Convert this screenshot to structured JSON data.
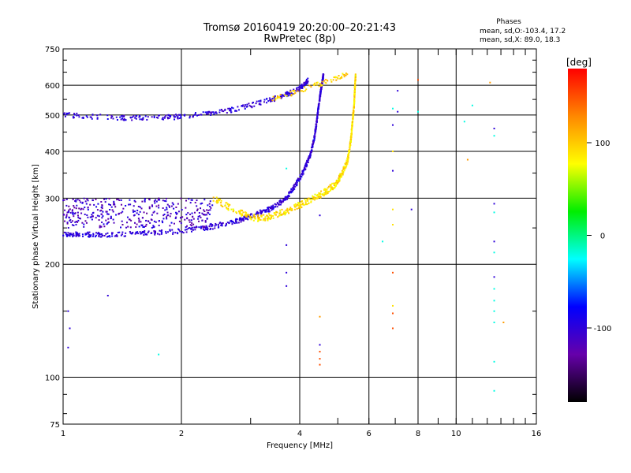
{
  "chart_data": {
    "type": "scatter",
    "title": "Tromsø 20160419 20:20:00–20:21:43",
    "subtitle": "RwPretec (8p)",
    "xlabel": "Frequency [MHz]",
    "ylabel": "Stationary phase Virtual Height [km]",
    "x_scale": "log",
    "y_scale": "log",
    "xlim": [
      1,
      16
    ],
    "ylim": [
      75,
      750
    ],
    "x_ticks": [
      1,
      2,
      4,
      6,
      8,
      10,
      16
    ],
    "y_ticks": [
      75,
      100,
      200,
      300,
      400,
      500,
      600,
      750
    ],
    "grid": true,
    "stats": {
      "title": "Phases",
      "line1": "mean, sd,O:-103.4, 17.2",
      "line2": "mean, sd,X:  89.0, 18.3"
    },
    "colorbar": {
      "label": "[deg]",
      "range": [
        -180,
        180
      ],
      "ticks": [
        100,
        0,
        -100
      ],
      "colors": [
        "#ff0000",
        "#ff8800",
        "#ffff00",
        "#00ee00",
        "#00ffff",
        "#0000ff",
        "#6600aa",
        "#000000"
      ]
    },
    "o_trace_lower": {
      "x": [
        1.0,
        1.1,
        1.3,
        1.6,
        2.0,
        2.4,
        2.8,
        3.1,
        3.4,
        3.7,
        3.9,
        4.1,
        4.25,
        4.35,
        4.42,
        4.47,
        4.52,
        4.56,
        4.6
      ],
      "y": [
        240,
        240,
        240,
        242,
        245,
        252,
        262,
        272,
        282,
        300,
        325,
        355,
        390,
        430,
        480,
        530,
        575,
        610,
        640
      ],
      "phase": -100
    },
    "o_trace_upper": {
      "x": [
        1.0,
        1.2,
        1.5,
        1.8,
        2.0,
        2.4,
        2.8,
        3.2,
        3.6,
        3.9,
        4.1,
        4.2
      ],
      "y": [
        500,
        495,
        490,
        492,
        495,
        505,
        520,
        540,
        560,
        580,
        600,
        620
      ],
      "phase": -100
    },
    "o_cluster_low": {
      "x_range": [
        1.0,
        2.4
      ],
      "y_range": [
        250,
        300
      ],
      "phase": -110
    },
    "x_trace": {
      "x": [
        2.4,
        2.8,
        3.1,
        3.4,
        3.8,
        4.2,
        4.6,
        4.9,
        5.1,
        5.3,
        5.4,
        5.45,
        5.5,
        5.52,
        5.55
      ],
      "y": [
        300,
        275,
        265,
        268,
        280,
        295,
        310,
        325,
        345,
        380,
        430,
        480,
        530,
        580,
        640
      ],
      "phase": 90
    },
    "x_upper": {
      "x": [
        3.4,
        3.8,
        4.2,
        4.6,
        5.0,
        5.3
      ],
      "y": [
        550,
        570,
        590,
        610,
        630,
        645
      ],
      "phase": 95
    },
    "scattered_points": [
      {
        "x": 1.03,
        "y": 120,
        "phase": -100
      },
      {
        "x": 1.04,
        "y": 135,
        "phase": -100
      },
      {
        "x": 1.03,
        "y": 150,
        "phase": -100
      },
      {
        "x": 1.3,
        "y": 165,
        "phase": -100
      },
      {
        "x": 1.75,
        "y": 115,
        "phase": -20
      },
      {
        "x": 3.7,
        "y": 175,
        "phase": -100
      },
      {
        "x": 3.7,
        "y": 190,
        "phase": -100
      },
      {
        "x": 3.7,
        "y": 225,
        "phase": -100
      },
      {
        "x": 3.7,
        "y": 360,
        "phase": -20
      },
      {
        "x": 4.5,
        "y": 108,
        "phase": 150
      },
      {
        "x": 4.5,
        "y": 112,
        "phase": 150
      },
      {
        "x": 4.5,
        "y": 117,
        "phase": 150
      },
      {
        "x": 4.5,
        "y": 122,
        "phase": -100
      },
      {
        "x": 4.5,
        "y": 145,
        "phase": 120
      },
      {
        "x": 4.5,
        "y": 270,
        "phase": -100
      },
      {
        "x": 6.5,
        "y": 230,
        "phase": -20
      },
      {
        "x": 6.9,
        "y": 135,
        "phase": 150
      },
      {
        "x": 6.9,
        "y": 148,
        "phase": 150
      },
      {
        "x": 6.9,
        "y": 155,
        "phase": 90
      },
      {
        "x": 6.9,
        "y": 190,
        "phase": 150
      },
      {
        "x": 6.9,
        "y": 255,
        "phase": 90
      },
      {
        "x": 6.9,
        "y": 280,
        "phase": 90
      },
      {
        "x": 6.9,
        "y": 355,
        "phase": -100
      },
      {
        "x": 6.9,
        "y": 400,
        "phase": 90
      },
      {
        "x": 6.9,
        "y": 470,
        "phase": -100
      },
      {
        "x": 6.9,
        "y": 520,
        "phase": -20
      },
      {
        "x": 7.1,
        "y": 580,
        "phase": -100
      },
      {
        "x": 7.1,
        "y": 510,
        "phase": -100
      },
      {
        "x": 7.7,
        "y": 280,
        "phase": -100
      },
      {
        "x": 8.0,
        "y": 620,
        "phase": 150
      },
      {
        "x": 8.0,
        "y": 510,
        "phase": -20
      },
      {
        "x": 10.5,
        "y": 480,
        "phase": -20
      },
      {
        "x": 10.7,
        "y": 380,
        "phase": 120
      },
      {
        "x": 11.0,
        "y": 530,
        "phase": -20
      },
      {
        "x": 12.2,
        "y": 610,
        "phase": 120
      },
      {
        "x": 12.5,
        "y": 92,
        "phase": -20
      },
      {
        "x": 12.5,
        "y": 110,
        "phase": -20
      },
      {
        "x": 12.5,
        "y": 140,
        "phase": -20
      },
      {
        "x": 12.5,
        "y": 150,
        "phase": -20
      },
      {
        "x": 12.5,
        "y": 160,
        "phase": -20
      },
      {
        "x": 12.5,
        "y": 172,
        "phase": -20
      },
      {
        "x": 12.5,
        "y": 185,
        "phase": -100
      },
      {
        "x": 12.5,
        "y": 215,
        "phase": -20
      },
      {
        "x": 12.5,
        "y": 230,
        "phase": -100
      },
      {
        "x": 12.5,
        "y": 275,
        "phase": -20
      },
      {
        "x": 12.5,
        "y": 290,
        "phase": -100
      },
      {
        "x": 12.5,
        "y": 440,
        "phase": -20
      },
      {
        "x": 12.5,
        "y": 460,
        "phase": -100
      },
      {
        "x": 13.2,
        "y": 140,
        "phase": 120
      }
    ]
  }
}
